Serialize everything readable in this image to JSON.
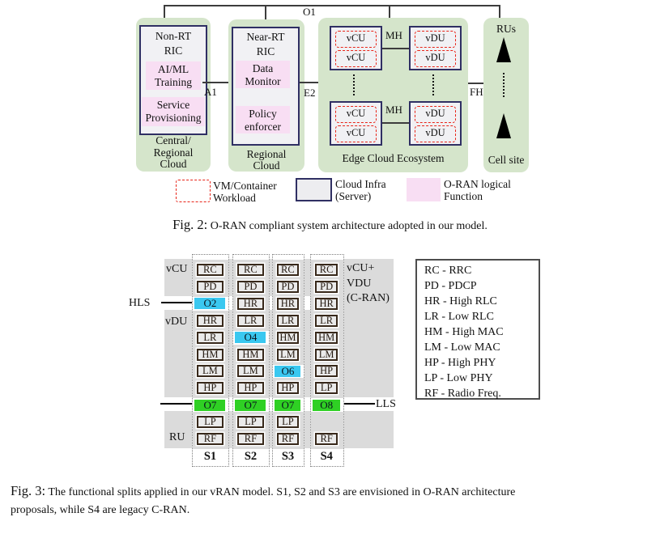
{
  "colors": {
    "fig_green": "#d5e5cb",
    "pink": "#f8def3",
    "server_fill": "#f1f1f4",
    "server_border": "#2f2f63",
    "red": "#e82418",
    "band": "#dbdbdb",
    "cyan": "#3ac8f0",
    "split_green": "#2fd024",
    "box_fill": "#eaeaea",
    "box_border": "#38291b",
    "line": "#3c3c3c"
  },
  "fig2": {
    "o1": "O1",
    "a1": "A1",
    "e2": "E2",
    "fh": "FH",
    "mh_top": "MH",
    "mh_bottom": "MH",
    "central": {
      "title": [
        "Non-RT",
        "RIC"
      ],
      "fn1": [
        "AI/ML",
        "Training"
      ],
      "fn2": [
        "Service",
        "Provisioning"
      ],
      "label": [
        "Central/",
        "Regional",
        "Cloud"
      ]
    },
    "regional": {
      "title": [
        "Near-RT",
        "RIC"
      ],
      "fn1": [
        "Data",
        "Monitor"
      ],
      "fn2": [
        "Policy",
        "enforcer"
      ],
      "label": [
        "Regional",
        "Cloud"
      ]
    },
    "edge": {
      "servers": [
        [
          "vCU",
          "vCU"
        ],
        [
          "vDU",
          "vDU"
        ],
        [
          "vCU",
          "vCU"
        ],
        [
          "vDU",
          "vDU"
        ]
      ],
      "label": "Edge Cloud Ecosystem"
    },
    "cellsite": {
      "top": "RUs",
      "label": "Cell site"
    },
    "legend": [
      {
        "swatch": "vm",
        "lines": [
          "VM/Container",
          "Workload"
        ]
      },
      {
        "swatch": "infra",
        "lines": [
          "Cloud Infra",
          "(Server)"
        ]
      },
      {
        "swatch": "oran",
        "lines": [
          "O-RAN logical",
          "Function"
        ]
      }
    ],
    "caption": {
      "prefix": "Fig. 2:",
      "text": "O-RAN compliant system architecture adopted in our model."
    }
  },
  "fig3": {
    "hls": "HLS",
    "lls": "LLS",
    "side": {
      "vcu": "vCU",
      "vdu": "vDU",
      "ru": "RU"
    },
    "right": [
      "vCU+",
      "VDU",
      "(C-RAN)"
    ],
    "columns": [
      {
        "label": "S1",
        "shade": [
          [
            0,
            1
          ],
          [
            3,
            7
          ],
          [
            9,
            10
          ]
        ],
        "cells": [
          [
            "RC",
            0,
            "f"
          ],
          [
            "PD",
            1,
            "f"
          ],
          [
            "O2",
            2,
            "c"
          ],
          [
            "HR",
            3,
            "f"
          ],
          [
            "LR",
            4,
            "f"
          ],
          [
            "HM",
            5,
            "f"
          ],
          [
            "LM",
            6,
            "f"
          ],
          [
            "HP",
            7,
            "f"
          ],
          [
            "O7",
            8,
            "g"
          ],
          [
            "LP",
            9,
            "f"
          ],
          [
            "RF",
            10,
            "f"
          ]
        ]
      },
      {
        "label": "S2",
        "shade": [
          [
            0,
            3
          ],
          [
            5,
            7
          ],
          [
            9,
            10
          ]
        ],
        "cells": [
          [
            "RC",
            0,
            "f"
          ],
          [
            "PD",
            1,
            "f"
          ],
          [
            "HR",
            2,
            "f"
          ],
          [
            "LR",
            3,
            "f"
          ],
          [
            "O4",
            4,
            "c"
          ],
          [
            "HM",
            5,
            "f"
          ],
          [
            "LM",
            6,
            "f"
          ],
          [
            "HP",
            7,
            "f"
          ],
          [
            "O7",
            8,
            "g"
          ],
          [
            "LP",
            9,
            "f"
          ],
          [
            "RF",
            10,
            "f"
          ]
        ]
      },
      {
        "label": "S3",
        "shade": [
          [
            0,
            5
          ],
          [
            7,
            7
          ],
          [
            9,
            10
          ]
        ],
        "cells": [
          [
            "RC",
            0,
            "f"
          ],
          [
            "PD",
            1,
            "f"
          ],
          [
            "HR",
            2,
            "f"
          ],
          [
            "LR",
            3,
            "f"
          ],
          [
            "HM",
            4,
            "f"
          ],
          [
            "LM",
            5,
            "f"
          ],
          [
            "O6",
            6,
            "c"
          ],
          [
            "HP",
            7,
            "f"
          ],
          [
            "O7",
            8,
            "g"
          ],
          [
            "LP",
            9,
            "f"
          ],
          [
            "RF",
            10,
            "f"
          ]
        ]
      },
      {
        "label": "S4",
        "shade": [
          [
            0,
            7
          ],
          [
            9,
            10
          ]
        ],
        "cells": [
          [
            "RC",
            0,
            "f"
          ],
          [
            "PD",
            1,
            "f"
          ],
          [
            "HR",
            2,
            "f"
          ],
          [
            "LR",
            3,
            "f"
          ],
          [
            "HM",
            4,
            "f"
          ],
          [
            "LM",
            5,
            "f"
          ],
          [
            "HP",
            6,
            "f"
          ],
          [
            "LP",
            7,
            "f"
          ],
          [
            "O8",
            8,
            "g"
          ],
          [
            "RF",
            10,
            "f"
          ]
        ]
      }
    ],
    "legend": [
      "RC - RRC",
      "PD - PDCP",
      "HR - High RLC",
      "LR - Low RLC",
      "HM - High MAC",
      "LM - Low MAC",
      "HP - High PHY",
      "LP - Low PHY",
      "RF - Radio Freq."
    ],
    "caption": {
      "prefix": "Fig. 3:",
      "line1": "The functional splits applied in our vRAN model. S1, S2 and S3 are envisioned in O-RAN architecture",
      "line2": "proposals, while S4 are legacy C-RAN."
    }
  }
}
